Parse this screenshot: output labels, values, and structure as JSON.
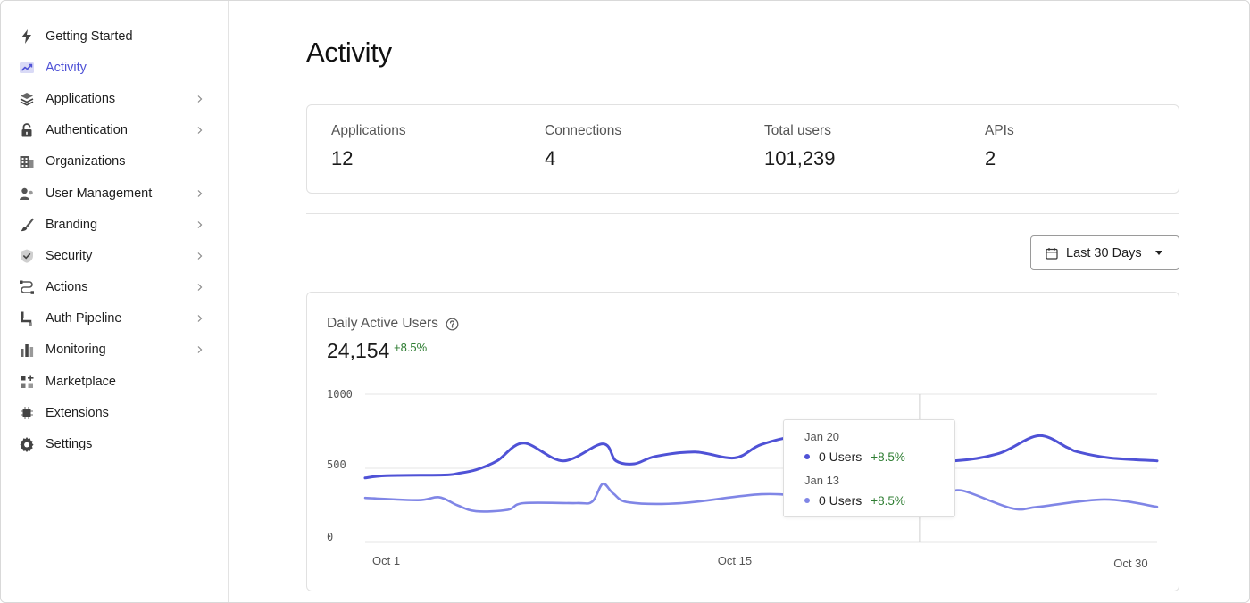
{
  "sidebar": {
    "items": [
      {
        "label": "Getting Started",
        "icon": "bolt-icon",
        "chevron": false,
        "active": false
      },
      {
        "label": "Activity",
        "icon": "activity-chart-icon",
        "chevron": false,
        "active": true
      },
      {
        "label": "Applications",
        "icon": "layers-icon",
        "chevron": true,
        "active": false
      },
      {
        "label": "Authentication",
        "icon": "lock-icon",
        "chevron": true,
        "active": false
      },
      {
        "label": "Organizations",
        "icon": "building-icon",
        "chevron": false,
        "active": false
      },
      {
        "label": "User Management",
        "icon": "users-icon",
        "chevron": true,
        "active": false
      },
      {
        "label": "Branding",
        "icon": "brush-icon",
        "chevron": true,
        "active": false
      },
      {
        "label": "Security",
        "icon": "shield-icon",
        "chevron": true,
        "active": false
      },
      {
        "label": "Actions",
        "icon": "flow-icon",
        "chevron": true,
        "active": false
      },
      {
        "label": "Auth Pipeline",
        "icon": "pipeline-icon",
        "chevron": true,
        "active": false
      },
      {
        "label": "Monitoring",
        "icon": "bar-chart-icon",
        "chevron": true,
        "active": false
      },
      {
        "label": "Marketplace",
        "icon": "grid-plus-icon",
        "chevron": false,
        "active": false
      },
      {
        "label": "Extensions",
        "icon": "chip-icon",
        "chevron": false,
        "active": false
      },
      {
        "label": "Settings",
        "icon": "gear-icon",
        "chevron": false,
        "active": false
      }
    ]
  },
  "page": {
    "title": "Activity"
  },
  "stats": [
    {
      "label": "Applications",
      "value": "12"
    },
    {
      "label": "Connections",
      "value": "4"
    },
    {
      "label": "Total users",
      "value": "101,239"
    },
    {
      "label": "APIs",
      "value": "2"
    }
  ],
  "date_filter": {
    "label": "Last 30 Days"
  },
  "dau": {
    "title": "Daily Active Users",
    "total": "24,154",
    "change": "+8.5%"
  },
  "tooltip": {
    "rows": [
      {
        "date": "Jan 20",
        "value": "0 Users",
        "change": "+8.5%",
        "color": "#4f52d6"
      },
      {
        "date": "Jan 13",
        "value": "0 Users",
        "change": "+8.5%",
        "color": "#8086e6"
      }
    ]
  },
  "colors": {
    "accent": "#4f52d6",
    "series_primary": "#4f52d6",
    "series_secondary": "#8086e6",
    "positive": "#2e7d32"
  },
  "chart_data": {
    "type": "line",
    "title": "Daily Active Users",
    "y_ticks": [
      "1000",
      "500",
      "0"
    ],
    "ylim": [
      0,
      1000
    ],
    "x_tick_labels": [
      "Oct 1",
      "Oct 15",
      "Oct 30"
    ],
    "x_tick_days": [
      1,
      15,
      30
    ],
    "xlim": [
      1,
      31
    ],
    "grid": true,
    "series": [
      {
        "color": "#4f52d6",
        "x": [
          1,
          1.8,
          4,
          4.5,
          5.2,
          6,
          7,
          8.5,
          10,
          10.5,
          11.2,
          12,
          13.5,
          15,
          16,
          17.5,
          18.8,
          19.6,
          21.2,
          22,
          23.3,
          25,
          26.5,
          27.6,
          28,
          29.2,
          31
        ],
        "values": [
          435,
          450,
          455,
          465,
          490,
          550,
          670,
          550,
          665,
          550,
          530,
          580,
          610,
          570,
          660,
          715,
          640,
          580,
          580,
          570,
          550,
          600,
          720,
          640,
          610,
          570,
          550
        ]
      },
      {
        "color": "#8086e6",
        "x": [
          1,
          3,
          3.8,
          4.5,
          5.2,
          6.4,
          7,
          9,
          9.6,
          10,
          10.4,
          11,
          13,
          16,
          18,
          19.6,
          22,
          23,
          23.6,
          25.5,
          26.5,
          29,
          31
        ],
        "values": [
          300,
          285,
          305,
          250,
          210,
          220,
          265,
          265,
          275,
          395,
          330,
          270,
          265,
          325,
          305,
          300,
          290,
          310,
          350,
          230,
          240,
          290,
          240
        ]
      }
    ],
    "highlight_day": 22
  }
}
